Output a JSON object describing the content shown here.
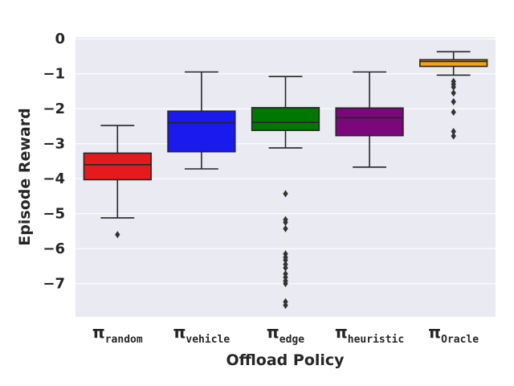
{
  "chart_data": {
    "type": "box",
    "xlabel": "Offload Policy",
    "ylabel": "Episode Reward",
    "ylim": [
      -7.95,
      0.05
    ],
    "yticks": [
      0,
      -1,
      -2,
      -3,
      -4,
      -5,
      -6,
      -7
    ],
    "ytick_labels": [
      "0",
      "−1",
      "−2",
      "−3",
      "−4",
      "−5",
      "−6",
      "−7"
    ],
    "grid": true,
    "background": "#eaeaf2",
    "categories": [
      {
        "symbol": "π",
        "subscript": "random",
        "color": "#e41a1c",
        "whisker_low": -5.12,
        "q1": -4.03,
        "median": -3.6,
        "q3": -3.27,
        "whisker_high": -2.48,
        "outliers": [
          -5.6
        ]
      },
      {
        "symbol": "π",
        "subscript": "vehicle",
        "color": "#1a1aee",
        "whisker_low": -3.72,
        "q1": -3.23,
        "median": -2.4,
        "q3": -2.07,
        "whisker_high": -0.95,
        "outliers": []
      },
      {
        "symbol": "π",
        "subscript": "edge",
        "color": "#007800",
        "whisker_low": -3.12,
        "q1": -2.62,
        "median": -2.39,
        "q3": -1.97,
        "whisker_high": -1.08,
        "outliers": [
          -4.43,
          -5.17,
          -5.25,
          -5.43,
          -6.15,
          -6.25,
          -6.33,
          -6.45,
          -6.55,
          -6.72,
          -6.82,
          -6.92,
          -7.0,
          -7.52,
          -7.62
        ]
      },
      {
        "symbol": "π",
        "subscript": "heuristic",
        "color": "#7a087a",
        "whisker_low": -3.67,
        "q1": -2.77,
        "median": -2.26,
        "q3": -1.98,
        "whisker_high": -0.95,
        "outliers": []
      },
      {
        "symbol": "π",
        "subscript": "Oracle",
        "color": "#f0a31c",
        "whisker_low": -1.04,
        "q1": -0.79,
        "median": -0.65,
        "q3": -0.6,
        "whisker_high": -0.37,
        "outliers": [
          -1.22,
          -1.3,
          -1.38,
          -1.55,
          -1.8,
          -2.1,
          -2.65,
          -2.78
        ]
      }
    ]
  }
}
